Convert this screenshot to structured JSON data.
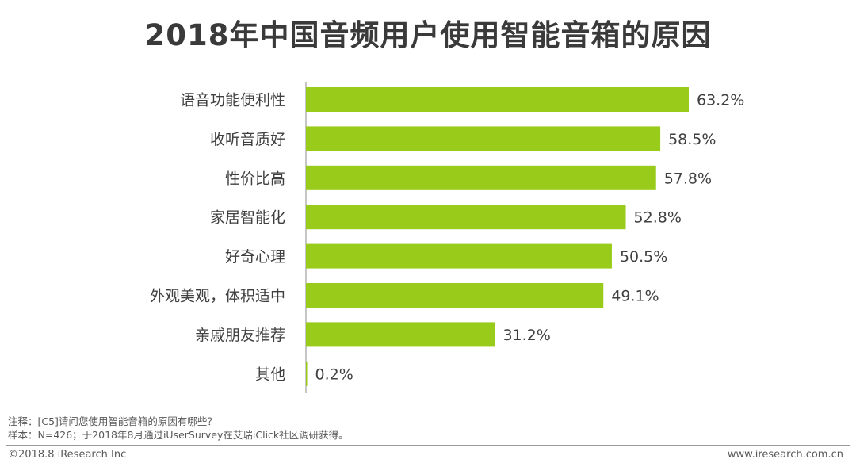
{
  "title": "2018年中国音频用户使用智能音箱的原因",
  "chart_data": {
    "type": "bar",
    "orientation": "horizontal",
    "categories": [
      "语音功能便利性",
      "收听音质好",
      "性价比高",
      "家居智能化",
      "好奇心理",
      "外观美观，体积适中",
      "亲戚朋友推荐",
      "其他"
    ],
    "values": [
      63.2,
      58.5,
      57.8,
      52.8,
      50.5,
      49.1,
      31.2,
      0.2
    ],
    "value_labels": [
      "63.2%",
      "58.5%",
      "57.8%",
      "52.8%",
      "50.5%",
      "49.1%",
      "31.2%",
      "0.2%"
    ],
    "unit": "%",
    "xlim": [
      0,
      63.2
    ],
    "bar_color": "#99cc1a",
    "grid": false,
    "legend": "none"
  },
  "notes": {
    "note": "注释：[C5]请问您使用智能音箱的原因有哪些？",
    "sample": "样本：N=426；于2018年8月通过iUserSurvey在艾瑞iClick社区调研获得。"
  },
  "footer": {
    "copyright": "©2018.8 iResearch Inc",
    "website": "www.iresearch.com.cn"
  }
}
